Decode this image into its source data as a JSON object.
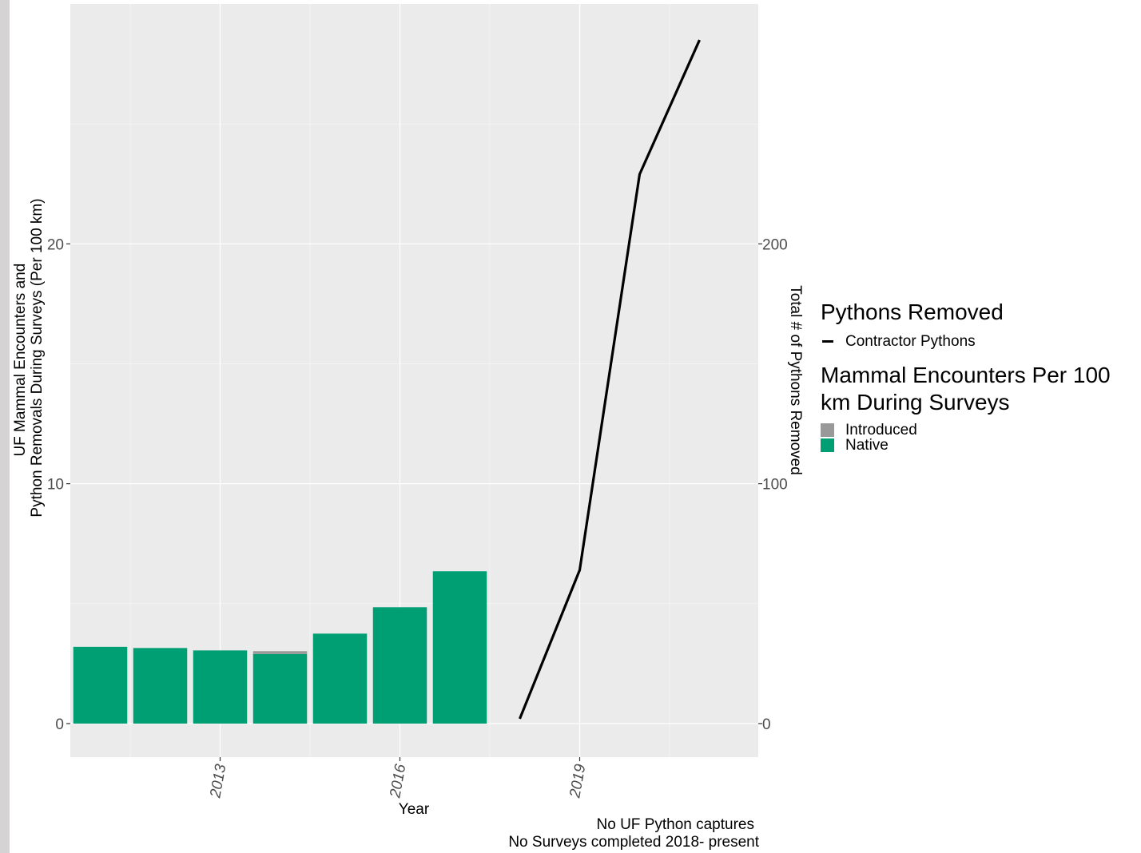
{
  "chart_data": {
    "type": "bar",
    "xlabel": "Year",
    "ylabel_lines": [
      "UF Mammal Encounters and",
      "Python Removals During Surveys (Per 100 km)"
    ],
    "y2label": "Total # of Pythons Removed",
    "x_ticks": [
      "2013",
      "2016",
      "2019"
    ],
    "x_tick_values": [
      2013,
      2016,
      2019
    ],
    "xlim": [
      2010.5,
      2021.98
    ],
    "y_ticks": [
      "0",
      "10",
      "20"
    ],
    "y_tick_values": [
      0,
      10,
      20
    ],
    "ylim": [
      -1.4,
      30
    ],
    "y2_ticks": [
      "0",
      "100",
      "200"
    ],
    "y2_tick_values": [
      0,
      100,
      200
    ],
    "y2lim": [
      -14,
      300
    ],
    "grid": true,
    "legend_position": "right",
    "bars": {
      "categories": [
        "2011",
        "2012",
        "2013",
        "2014",
        "2015",
        "2016",
        "2017"
      ],
      "x": [
        2011,
        2012,
        2013,
        2014,
        2015,
        2016,
        2017
      ],
      "series": [
        {
          "name": "Native",
          "values": [
            3.2,
            3.15,
            3.05,
            2.9,
            3.75,
            4.85,
            6.35
          ]
        },
        {
          "name": "Introduced",
          "values": [
            0,
            0,
            0,
            0.12,
            0,
            0,
            0
          ]
        }
      ]
    },
    "line": {
      "name": "Contractor Pythons",
      "axis": "right",
      "x": [
        2018,
        2019,
        2020,
        2021
      ],
      "values": [
        2,
        64,
        229,
        285
      ]
    },
    "caption": [
      "No UF Python captures",
      "No Surveys completed 2018- present"
    ]
  },
  "legend": {
    "pythons_title": "Pythons Removed",
    "pythons_items": [
      {
        "label": "Contractor Pythons"
      }
    ],
    "mammal_title": "Mammal Encounters Per 100\n km During Surveys",
    "mammal_items": [
      {
        "label": "Introduced"
      },
      {
        "label": "Native"
      }
    ]
  },
  "colors": {
    "panel_background": "#ebebeb",
    "grid_major": "#ffffff",
    "native": "#009e73",
    "introduced": "#999999",
    "line": "#000000",
    "tick_text": "#4d4d4d",
    "left_strip": "#d6d3d4"
  }
}
